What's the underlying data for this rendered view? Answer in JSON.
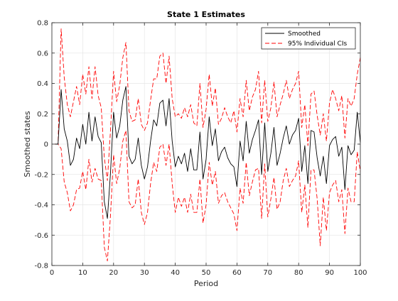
{
  "chart_data": {
    "type": "line",
    "title": "State 1 Estimates",
    "xlabel": "Period",
    "ylabel": "Smoothed states",
    "xlim": [
      0,
      100
    ],
    "ylim": [
      -0.8,
      0.8
    ],
    "xticks": [
      0,
      10,
      20,
      30,
      40,
      50,
      60,
      70,
      80,
      90,
      100
    ],
    "yticks": [
      -0.8,
      -0.6,
      -0.4,
      -0.2,
      0,
      0.2,
      0.4,
      0.6,
      0.8
    ],
    "grid": true,
    "legend_position": "top-right",
    "x": [
      1,
      2,
      3,
      4,
      5,
      6,
      7,
      8,
      9,
      10,
      11,
      12,
      13,
      14,
      15,
      16,
      17,
      18,
      19,
      20,
      21,
      22,
      23,
      24,
      25,
      26,
      27,
      28,
      29,
      30,
      31,
      32,
      33,
      34,
      35,
      36,
      37,
      38,
      39,
      40,
      41,
      42,
      43,
      44,
      45,
      46,
      47,
      48,
      49,
      50,
      51,
      52,
      53,
      54,
      55,
      56,
      57,
      58,
      59,
      60,
      61,
      62,
      63,
      64,
      65,
      66,
      67,
      68,
      69,
      70,
      71,
      72,
      73,
      74,
      75,
      76,
      77,
      78,
      79,
      80,
      81,
      82,
      83,
      84,
      85,
      86,
      87,
      88,
      89,
      90,
      91,
      92,
      93,
      94,
      95,
      96,
      97,
      98,
      99,
      100
    ],
    "series": [
      {
        "name": "Smoothed",
        "color": "#000000",
        "style": "solid",
        "values": [
          0,
          0,
          0.36,
          0.1,
          0.02,
          -0.14,
          -0.1,
          0.04,
          -0.03,
          0.13,
          0,
          0.21,
          0.02,
          0.18,
          0.05,
          0.01,
          -0.38,
          -0.49,
          -0.19,
          0.21,
          0.04,
          0.12,
          0.29,
          0.38,
          -0.08,
          -0.13,
          -0.1,
          0.04,
          -0.14,
          -0.23,
          -0.15,
          0.02,
          0.16,
          0.12,
          0.27,
          0.29,
          0.12,
          0.3,
          0.02,
          -0.15,
          -0.08,
          -0.13,
          -0.06,
          -0.18,
          -0.03,
          -0.17,
          -0.17,
          0.08,
          -0.23,
          -0.1,
          0.18,
          -0.01,
          0.1,
          -0.11,
          -0.05,
          -0.02,
          -0.09,
          -0.13,
          -0.15,
          -0.28,
          0.02,
          -0.11,
          0.15,
          -0.06,
          0.03,
          0.09,
          0.16,
          -0.2,
          0.14,
          -0.18,
          -0.06,
          0.11,
          -0.14,
          -0.06,
          0.04,
          0.12,
          0,
          0.06,
          0.09,
          0.17,
          -0.18,
          -0.01,
          -0.26,
          0.09,
          0.08,
          -0.09,
          -0.21,
          -0.08,
          -0.26,
          -0.01,
          0.03,
          0.05,
          -0.08,
          -0.02,
          -0.3,
          -0.01,
          -0.07,
          -0.04,
          0.21,
          0.01
        ]
      },
      {
        "name": "95% Individual CIs",
        "color": "#ff0000",
        "style": "dashed",
        "values": [
          0,
          0,
          0.76,
          0.44,
          0.26,
          0.18,
          0.28,
          0.38,
          0.26,
          0.46,
          0.33,
          0.51,
          0.3,
          0.51,
          0.32,
          0.24,
          -0.09,
          -0.24,
          0.09,
          0.48,
          0.28,
          0.39,
          0.57,
          0.67,
          0.22,
          0.15,
          0.16,
          0.3,
          0.13,
          0.09,
          0.14,
          0.29,
          0.43,
          0.43,
          0.58,
          0.6,
          0.4,
          0.58,
          0.3,
          0.18,
          0.2,
          0.17,
          0.24,
          0.18,
          0.26,
          0.14,
          0.12,
          0.4,
          0.11,
          0.23,
          0.46,
          0.25,
          0.37,
          0.13,
          0.17,
          0.24,
          0.18,
          0.14,
          0.22,
          0.08,
          0.3,
          0.18,
          0.42,
          0.22,
          0.31,
          0.36,
          0.48,
          0.14,
          0.42,
          0.15,
          0.24,
          0.41,
          0.18,
          0.26,
          0.33,
          0.42,
          0.3,
          0.36,
          0.4,
          0.48,
          0.11,
          0.26,
          -0.01,
          0.33,
          0.35,
          0.19,
          0.06,
          0.2,
          0.02,
          0.27,
          0.36,
          0.3,
          0.22,
          0.32,
          0.04,
          0.3,
          0.25,
          0.3,
          0.46,
          0.57
        ]
      },
      {
        "name": "",
        "color": "#ff0000",
        "style": "dashed",
        "values": [
          0,
          0,
          -0.03,
          -0.25,
          -0.32,
          -0.44,
          -0.4,
          -0.3,
          -0.29,
          -0.18,
          -0.3,
          -0.1,
          -0.25,
          -0.16,
          -0.23,
          -0.24,
          -0.68,
          -0.77,
          -0.47,
          -0.07,
          -0.26,
          -0.16,
          0.02,
          0.09,
          -0.38,
          -0.42,
          -0.4,
          -0.23,
          -0.45,
          -0.53,
          -0.45,
          -0.26,
          -0.12,
          -0.18,
          -0.02,
          0,
          -0.14,
          0,
          -0.26,
          -0.45,
          -0.35,
          -0.41,
          -0.35,
          -0.45,
          -0.33,
          -0.45,
          -0.45,
          -0.23,
          -0.52,
          -0.4,
          -0.12,
          -0.27,
          -0.18,
          -0.39,
          -0.34,
          -0.32,
          -0.38,
          -0.42,
          -0.46,
          -0.57,
          -0.29,
          -0.39,
          -0.12,
          -0.34,
          -0.25,
          -0.17,
          -0.16,
          -0.49,
          -0.13,
          -0.48,
          -0.36,
          -0.22,
          -0.43,
          -0.38,
          -0.24,
          -0.16,
          -0.28,
          -0.24,
          -0.21,
          -0.11,
          -0.45,
          -0.27,
          -0.55,
          -0.17,
          -0.17,
          -0.36,
          -0.67,
          -0.35,
          -0.57,
          -0.32,
          -0.27,
          -0.24,
          -0.38,
          -0.3,
          -0.59,
          -0.29,
          -0.38,
          -0.38,
          -0.05,
          -0.18
        ]
      }
    ]
  }
}
